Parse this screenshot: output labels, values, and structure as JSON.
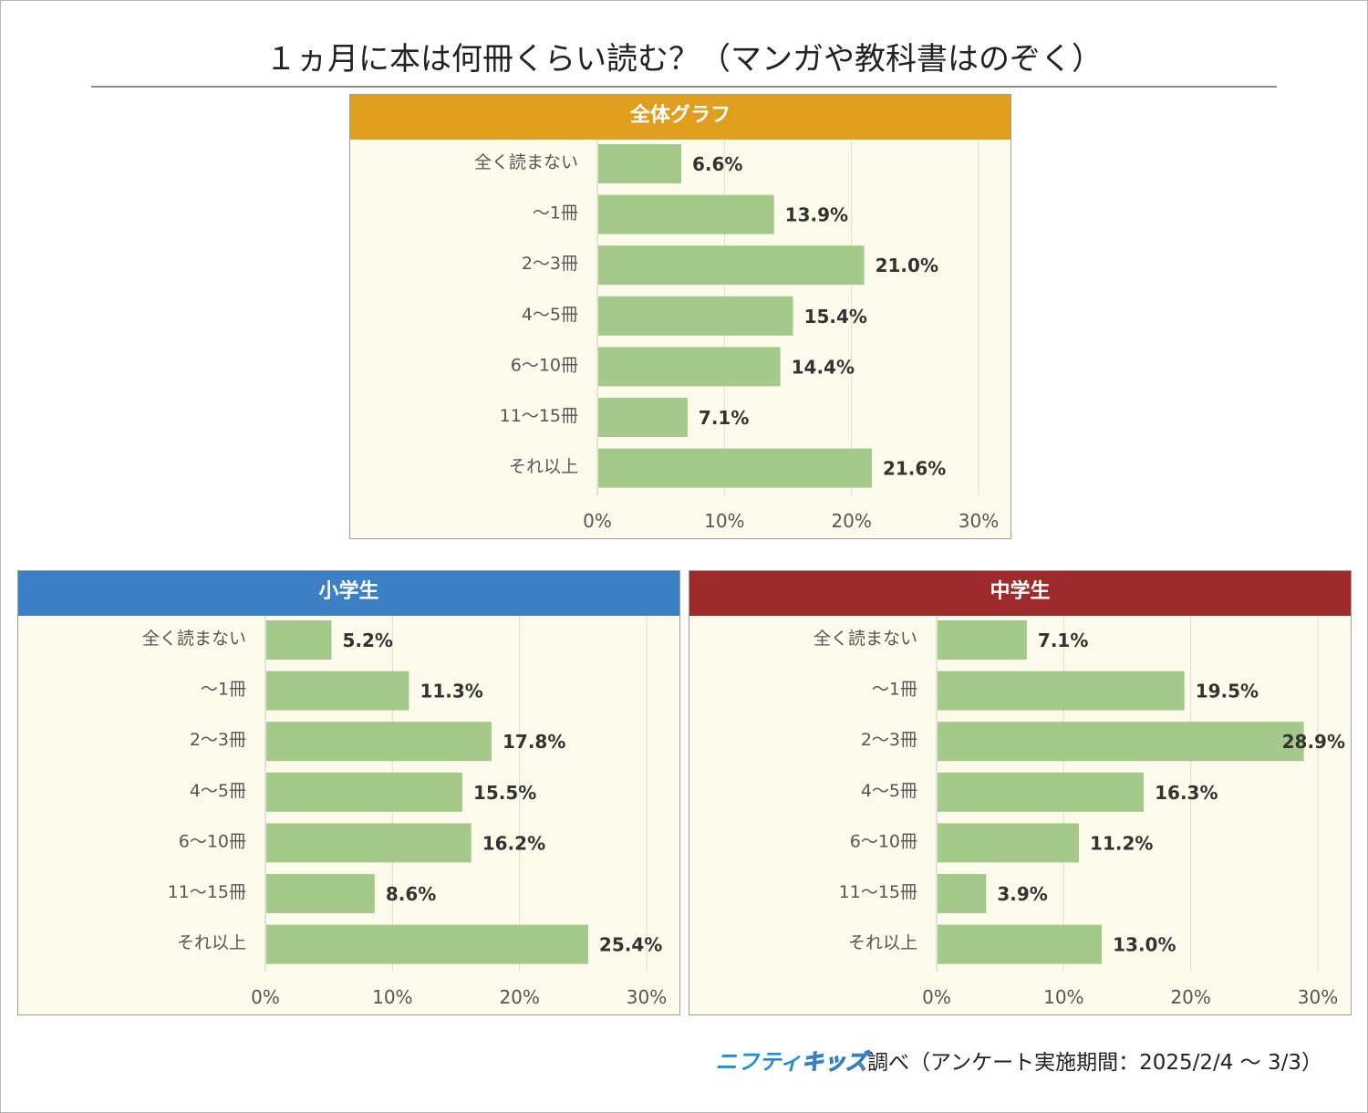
{
  "title": "１ヵ月に本は何冊くらい読む？（マンガや教科書はのぞく）",
  "colors": {
    "bar": "#a5c98a",
    "panel_bg": "#fdfcec",
    "overall_header": "#e09e1e",
    "elementary_header": "#3b80c4",
    "junior_header": "#9e2a2b"
  },
  "chart_data": [
    {
      "type": "bar",
      "orientation": "horizontal",
      "title": "全体グラフ",
      "categories": [
        "全く読まない",
        "～1冊",
        "2～3冊",
        "4～5冊",
        "6～10冊",
        "11～15冊",
        "それ以上"
      ],
      "values": [
        6.6,
        13.9,
        21.0,
        15.4,
        14.4,
        7.1,
        21.6
      ],
      "value_labels": [
        "6.6%",
        "13.9%",
        "21.0%",
        "15.4%",
        "14.4%",
        "7.1%",
        "21.6%"
      ],
      "xlim": [
        0,
        30
      ],
      "ticks": [
        0,
        10,
        20,
        30
      ],
      "tick_labels": [
        "0%",
        "10%",
        "20%",
        "30%"
      ],
      "grid": true
    },
    {
      "type": "bar",
      "orientation": "horizontal",
      "title": "小学生",
      "categories": [
        "全く読まない",
        "～1冊",
        "2～3冊",
        "4～5冊",
        "6～10冊",
        "11～15冊",
        "それ以上"
      ],
      "values": [
        5.2,
        11.3,
        17.8,
        15.5,
        16.2,
        8.6,
        25.4
      ],
      "value_labels": [
        "5.2%",
        "11.3%",
        "17.8%",
        "15.5%",
        "16.2%",
        "8.6%",
        "25.4%"
      ],
      "xlim": [
        0,
        30
      ],
      "ticks": [
        0,
        10,
        20,
        30
      ],
      "tick_labels": [
        "0%",
        "10%",
        "20%",
        "30%"
      ],
      "grid": true
    },
    {
      "type": "bar",
      "orientation": "horizontal",
      "title": "中学生",
      "categories": [
        "全く読まない",
        "～1冊",
        "2～3冊",
        "4～5冊",
        "6～10冊",
        "11～15冊",
        "それ以上"
      ],
      "values": [
        7.1,
        19.5,
        28.9,
        16.3,
        11.2,
        3.9,
        13.0
      ],
      "value_labels": [
        "7.1%",
        "19.5%",
        "28.9%",
        "16.3%",
        "11.2%",
        "3.9%",
        "13.0%"
      ],
      "xlim": [
        0,
        30
      ],
      "ticks": [
        0,
        10,
        20,
        30
      ],
      "tick_labels": [
        "0%",
        "10%",
        "20%",
        "30%"
      ],
      "grid": true
    }
  ],
  "footer": {
    "brand_part1": "ニフティ",
    "brand_part2": "キッズ",
    "text": "調べ（アンケート実施期間：2025/2/4 ～ 3/3）"
  }
}
